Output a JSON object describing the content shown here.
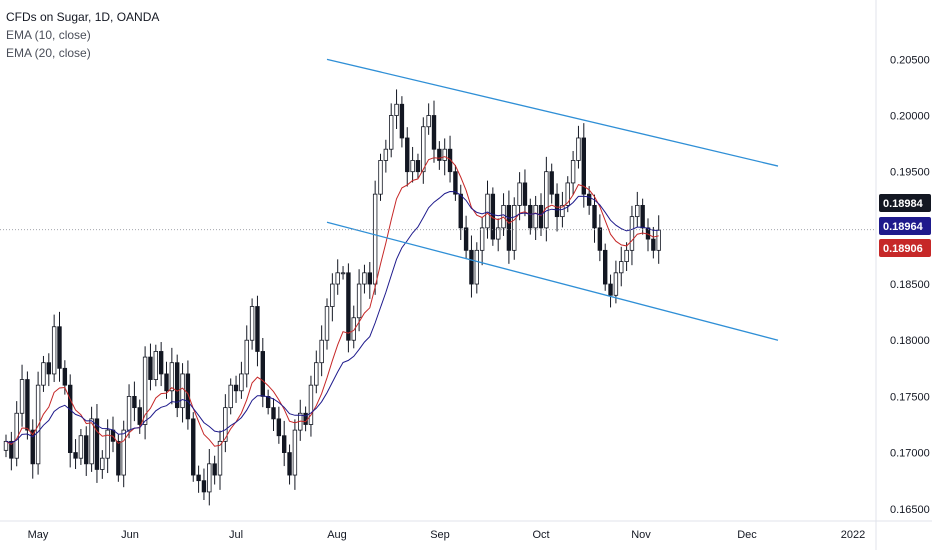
{
  "legend": {
    "title": "CFDs on Sugar, 1D, OANDA",
    "ema10": "EMA (10, close)",
    "ema20": "EMA (20, close)"
  },
  "chart_data": {
    "type": "candlestick",
    "title": "CFDs on Sugar, 1D, OANDA",
    "y_ticks": [
      "0.16500",
      "0.17000",
      "0.17500",
      "0.18000",
      "0.18500",
      "0.19000",
      "0.19500",
      "0.20000",
      "0.20500"
    ],
    "x_ticks": [
      "May",
      "Jun",
      "Jul",
      "Aug",
      "Sep",
      "Oct",
      "Nov",
      "Dec",
      "2022"
    ],
    "ylim": [
      0.164,
      0.2085
    ],
    "grid": false,
    "last_price": {
      "label": "0.18984",
      "value": 0.18984,
      "color": "#131722"
    },
    "ema_20_tag": {
      "label": "0.18964",
      "value": 0.18964,
      "color": "#1e1a8c"
    },
    "ema_10_tag": {
      "label": "0.18906",
      "value": 0.18906,
      "color": "#c62828"
    },
    "closes": [
      0.171,
      0.1695,
      0.1735,
      0.1765,
      0.172,
      0.169,
      0.176,
      0.178,
      0.177,
      0.1812,
      0.1775,
      0.176,
      0.17,
      0.1695,
      0.1715,
      0.169,
      0.173,
      0.1685,
      0.1695,
      0.172,
      0.171,
      0.168,
      0.172,
      0.175,
      0.174,
      0.1725,
      0.1785,
      0.1765,
      0.179,
      0.177,
      0.1755,
      0.178,
      0.174,
      0.177,
      0.173,
      0.168,
      0.1675,
      0.1665,
      0.169,
      0.168,
      0.171,
      0.174,
      0.176,
      0.1755,
      0.177,
      0.18,
      0.183,
      0.179,
      0.175,
      0.174,
      0.173,
      0.1715,
      0.17,
      0.168,
      0.172,
      0.1735,
      0.1725,
      0.176,
      0.178,
      0.18,
      0.183,
      0.185,
      0.186,
      0.186,
      0.18,
      0.182,
      0.185,
      0.186,
      0.185,
      0.193,
      0.196,
      0.197,
      0.2,
      0.201,
      0.198,
      0.195,
      0.196,
      0.195,
      0.199,
      0.2,
      0.197,
      0.196,
      0.197,
      0.195,
      0.193,
      0.19,
      0.188,
      0.185,
      0.188,
      0.19,
      0.193,
      0.189,
      0.19,
      0.192,
      0.188,
      0.192,
      0.194,
      0.192,
      0.19,
      0.192,
      0.19,
      0.195,
      0.193,
      0.191,
      0.192,
      0.194,
      0.196,
      0.198,
      0.193,
      0.192,
      0.19,
      0.188,
      0.185,
      0.184,
      0.186,
      0.187,
      0.188,
      0.191,
      0.192,
      0.19,
      0.189,
      0.188,
      0.1898
    ],
    "ema10": {
      "name": "EMA (10, close)",
      "color": "#c62828"
    },
    "ema20": {
      "name": "EMA (20, close)",
      "color": "#1e1a8c"
    },
    "channel": {
      "color": "#2f8fd6",
      "upper": [
        [
          0.205,
          0.1955
        ]
      ],
      "lower": [
        [
          0.1905,
          0.18
        ]
      ]
    },
    "x_labels_dates": [
      "2021-05-01",
      "2021-06-01",
      "2021-07-01",
      "2021-08-01",
      "2021-09-01",
      "2021-10-01",
      "2021-11-01",
      "2021-12-01",
      "2022-01-01"
    ]
  }
}
